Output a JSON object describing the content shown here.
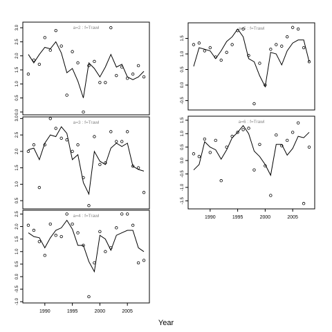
{
  "figure": {
    "xlabel": "Year"
  },
  "chart_data": [
    {
      "type": "line",
      "title": "a=2  :  f=Trawl",
      "xlim": [
        1986,
        2009
      ],
      "ylim": [
        -0.1,
        3.2
      ],
      "yticks": [
        "0.0",
        "0.5",
        "1.0",
        "1.5",
        "2.0",
        "2.5",
        "3.0"
      ],
      "show_xticks": false,
      "line": {
        "x": [
          1987,
          1988,
          1989,
          1990,
          1991,
          1992,
          1993,
          1994,
          1995,
          1996,
          1997,
          1998,
          1999,
          2000,
          2001,
          2002,
          2003,
          2004,
          2005,
          2006,
          2007,
          2008
        ],
        "y": [
          2.05,
          1.75,
          2.05,
          2.3,
          2.25,
          2.5,
          2.1,
          1.4,
          1.55,
          1.1,
          0.5,
          1.75,
          1.55,
          1.25,
          1.6,
          2.05,
          1.6,
          1.7,
          1.25,
          1.15,
          1.25,
          1.45
        ]
      },
      "points": {
        "x": [
          1987,
          1988,
          1989,
          1990,
          1991,
          1992,
          1993,
          1994,
          1995,
          1996,
          1997,
          1998,
          1999,
          2000,
          2001,
          2002,
          2003,
          2004,
          2005,
          2006,
          2007,
          2008
        ],
        "y": [
          1.35,
          1.85,
          1.7,
          2.65,
          2.2,
          2.9,
          2.35,
          0.6,
          2.15,
          1.75,
          0.0,
          1.65,
          1.8,
          1.05,
          1.05,
          3.0,
          1.3,
          1.6,
          1.2,
          1.35,
          1.65,
          1.25
        ]
      }
    },
    {
      "type": "line",
      "title": "a=3  :  f=Trawl",
      "xlim": [
        1986,
        2009
      ],
      "ylim": [
        0.25,
        3.05
      ],
      "yticks": [
        "0.5",
        "1.0",
        "1.5",
        "2.0",
        "2.5",
        "3.0"
      ],
      "show_xticks": false,
      "line": {
        "x": [
          1987,
          1988,
          1989,
          1990,
          1991,
          1992,
          1993,
          1994,
          1995,
          1996,
          1997,
          1998,
          1999,
          2000,
          2001,
          2002,
          2003,
          2004,
          2005,
          2006,
          2007,
          2008
        ],
        "y": [
          2.05,
          2.1,
          1.75,
          2.25,
          2.5,
          2.45,
          2.75,
          2.55,
          1.75,
          1.9,
          1.05,
          0.7,
          2.0,
          1.7,
          1.6,
          2.1,
          2.25,
          2.15,
          2.25,
          1.55,
          1.45,
          1.4
        ]
      },
      "points": {
        "x": [
          1987,
          1988,
          1989,
          1990,
          1991,
          1992,
          1993,
          1994,
          1995,
          1996,
          1997,
          1998,
          1999,
          2000,
          2001,
          2002,
          2003,
          2004,
          2005,
          2006,
          2007,
          2008
        ],
        "y": [
          2.0,
          2.2,
          0.9,
          2.2,
          3.0,
          2.7,
          2.4,
          2.35,
          2.0,
          2.2,
          1.2,
          0.35,
          2.45,
          1.6,
          1.65,
          2.6,
          2.3,
          2.3,
          2.6,
          1.55,
          1.5,
          0.75
        ]
      }
    },
    {
      "type": "line",
      "title": "a=4  :  f=Trawl",
      "xlim": [
        1986,
        2009
      ],
      "ylim": [
        -1.05,
        2.65
      ],
      "yticks": [
        "-1.0",
        "-0.5",
        "0.0",
        "0.5",
        "1.0",
        "1.5",
        "2.0",
        "2.5"
      ],
      "show_xticks": true,
      "xticks": [
        "1990",
        "1995",
        "2000",
        "2005"
      ],
      "line": {
        "x": [
          1987,
          1988,
          1989,
          1990,
          1991,
          1992,
          1993,
          1994,
          1995,
          1996,
          1997,
          1998,
          1999,
          2000,
          2001,
          2002,
          2003,
          2004,
          2005,
          2006,
          2007,
          2008
        ],
        "y": [
          1.75,
          1.6,
          1.55,
          1.15,
          1.55,
          1.85,
          1.95,
          2.25,
          1.9,
          1.25,
          1.25,
          0.6,
          0.2,
          1.65,
          1.5,
          1.05,
          1.65,
          1.75,
          1.85,
          1.85,
          1.15,
          1.0
        ]
      },
      "points": {
        "x": [
          1987,
          1988,
          1989,
          1990,
          1991,
          1992,
          1993,
          1994,
          1995,
          1996,
          1997,
          1998,
          1999,
          2000,
          2001,
          2002,
          2003,
          2004,
          2005,
          2006,
          2007,
          2008
        ],
        "y": [
          2.05,
          1.85,
          1.4,
          0.85,
          2.1,
          1.65,
          1.6,
          2.5,
          2.1,
          1.75,
          1.25,
          -0.8,
          0.55,
          1.8,
          1.0,
          1.15,
          1.95,
          2.5,
          2.5,
          2.05,
          0.55,
          0.65
        ]
      }
    },
    {
      "type": "line",
      "title": "a=5  :  f=Trawl",
      "xlim": [
        1986,
        2009
      ],
      "ylim": [
        -0.8,
        2.0
      ],
      "yticks": [
        "-0.5",
        "0.0",
        "0.5",
        "1.0",
        "1.5"
      ],
      "show_xticks": false,
      "line": {
        "x": [
          1987,
          1988,
          1989,
          1990,
          1991,
          1992,
          1993,
          1994,
          1995,
          1996,
          1997,
          1998,
          1999,
          2000,
          2001,
          2002,
          2003,
          2004,
          2005,
          2006,
          2007,
          2008
        ],
        "y": [
          0.6,
          1.2,
          1.15,
          1.1,
          0.85,
          1.1,
          1.4,
          1.55,
          1.8,
          1.55,
          0.85,
          0.75,
          0.3,
          -0.05,
          1.05,
          1.0,
          0.65,
          1.1,
          1.35,
          1.45,
          1.45,
          0.75
        ]
      },
      "points": {
        "x": [
          1987,
          1988,
          1989,
          1990,
          1991,
          1992,
          1993,
          1994,
          1995,
          1996,
          1997,
          1998,
          1999,
          2000,
          2001,
          2002,
          2003,
          2004,
          2005,
          2006,
          2007,
          2008
        ],
        "y": [
          1.3,
          1.35,
          1.1,
          1.2,
          0.9,
          0.8,
          1.05,
          1.3,
          1.75,
          1.8,
          0.95,
          -0.6,
          0.7,
          0.0,
          1.15,
          1.3,
          1.25,
          1.55,
          1.85,
          1.8,
          1.2,
          0.75
        ]
      }
    },
    {
      "type": "line",
      "title": "a=6  :  f=Trawl",
      "xlim": [
        1986,
        2009
      ],
      "ylim": [
        -1.8,
        1.65
      ],
      "yticks": [
        "-1.5",
        "-1.0",
        "-0.5",
        "0.0",
        "0.5",
        "1.0",
        "1.5"
      ],
      "show_xticks": true,
      "xticks": [
        "1990",
        "1995",
        "2000",
        "2005"
      ],
      "line": {
        "x": [
          1987,
          1988,
          1989,
          1990,
          1991,
          1992,
          1993,
          1994,
          1995,
          1996,
          1997,
          1998,
          1999,
          2000,
          2001,
          2002,
          2003,
          2004,
          2005,
          2006,
          2007,
          2008
        ],
        "y": [
          -0.35,
          -0.15,
          0.7,
          0.5,
          0.4,
          0.05,
          0.4,
          0.85,
          1.05,
          1.3,
          1.0,
          0.35,
          0.15,
          -0.15,
          -0.55,
          0.6,
          0.6,
          0.2,
          0.45,
          0.9,
          0.85,
          1.05
        ]
      },
      "points": {
        "x": [
          1987,
          1988,
          1989,
          1990,
          1991,
          1992,
          1993,
          1994,
          1995,
          1996,
          1997,
          1998,
          1999,
          2000,
          2001,
          2002,
          2003,
          2004,
          2005,
          2006,
          2007,
          2008
        ],
        "y": [
          0.25,
          0.15,
          0.8,
          0.3,
          0.75,
          -0.75,
          0.5,
          0.9,
          1.05,
          1.15,
          1.2,
          -0.35,
          0.6,
          -0.2,
          -1.3,
          0.95,
          0.55,
          0.75,
          1.05,
          1.4,
          -1.6,
          0.5
        ]
      }
    }
  ]
}
